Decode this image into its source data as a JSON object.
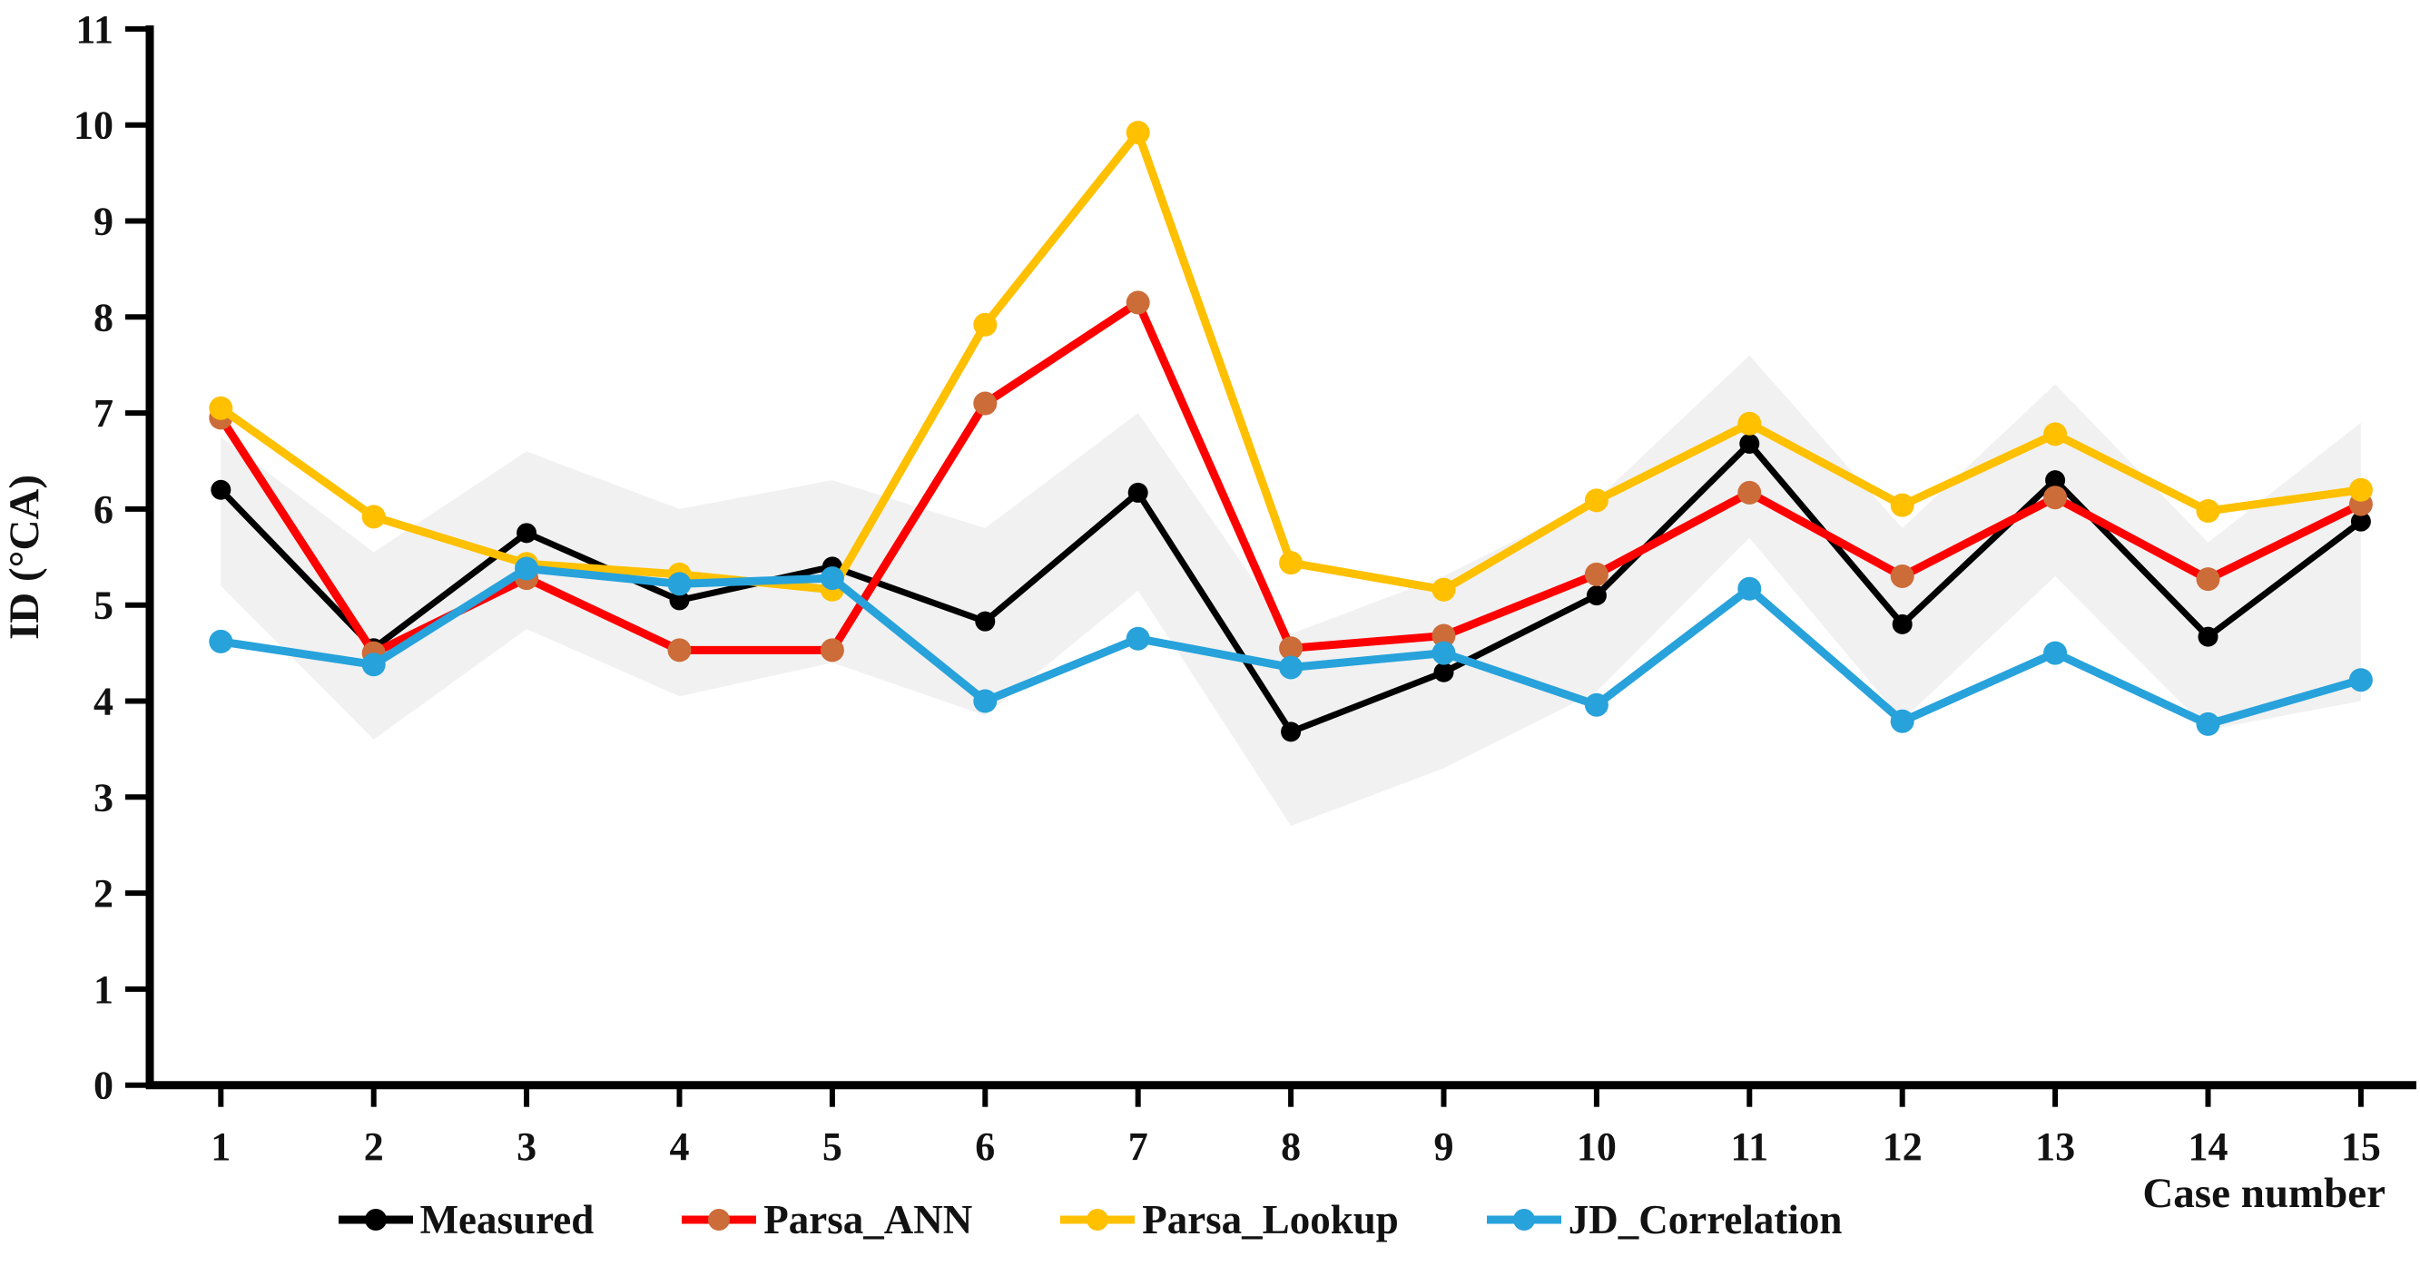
{
  "chart_data": {
    "type": "line",
    "title": "",
    "xlabel": "Case number",
    "ylabel": "ID (°CA)",
    "x": [
      1,
      2,
      3,
      4,
      5,
      6,
      7,
      8,
      9,
      10,
      11,
      12,
      13,
      14,
      15
    ],
    "xlim": [
      1,
      15
    ],
    "ylim": [
      0,
      11
    ],
    "yticks": [
      0,
      1,
      2,
      3,
      4,
      5,
      6,
      7,
      8,
      9,
      10,
      11
    ],
    "grid": false,
    "legend_position": "bottom",
    "series": [
      {
        "name": "Measured",
        "line_color": "#000000",
        "marker_color": "#000000",
        "values": [
          6.2,
          4.55,
          5.75,
          5.05,
          5.4,
          4.83,
          6.17,
          3.68,
          4.3,
          5.1,
          6.68,
          4.8,
          6.3,
          4.67,
          5.87
        ]
      },
      {
        "name": "Parsa_ANN",
        "line_color": "#FE0000",
        "marker_color": "#CC6C39",
        "values": [
          6.95,
          4.5,
          5.28,
          4.53,
          4.53,
          7.1,
          8.15,
          4.55,
          4.68,
          5.32,
          6.17,
          5.3,
          6.12,
          5.27,
          6.05
        ]
      },
      {
        "name": "Parsa_Lookup",
        "line_color": "#FFC000",
        "marker_color": "#FFC000",
        "values": [
          7.05,
          5.92,
          5.43,
          5.32,
          5.16,
          7.92,
          9.92,
          5.44,
          5.16,
          6.09,
          6.89,
          6.04,
          6.78,
          5.98,
          6.2
        ]
      },
      {
        "name": "JD_Correlation",
        "line_color": "#27A2DB",
        "marker_color": "#27A2DB",
        "values": [
          4.62,
          4.38,
          5.38,
          5.22,
          5.28,
          4.0,
          4.65,
          4.35,
          4.5,
          3.96,
          5.17,
          3.79,
          4.5,
          3.76,
          4.22
        ]
      }
    ],
    "band": {
      "name": "measured-uncertainty-band",
      "fill_color": "#EFEFEF",
      "upper": [
        6.75,
        5.55,
        6.6,
        6.0,
        6.3,
        5.8,
        7.0,
        4.7,
        5.3,
        6.1,
        7.6,
        5.8,
        7.3,
        5.65,
        6.9
      ],
      "lower": [
        5.2,
        3.6,
        4.75,
        4.05,
        4.4,
        3.85,
        5.15,
        2.7,
        3.3,
        4.1,
        5.7,
        3.8,
        5.3,
        3.7,
        4.0
      ]
    }
  }
}
